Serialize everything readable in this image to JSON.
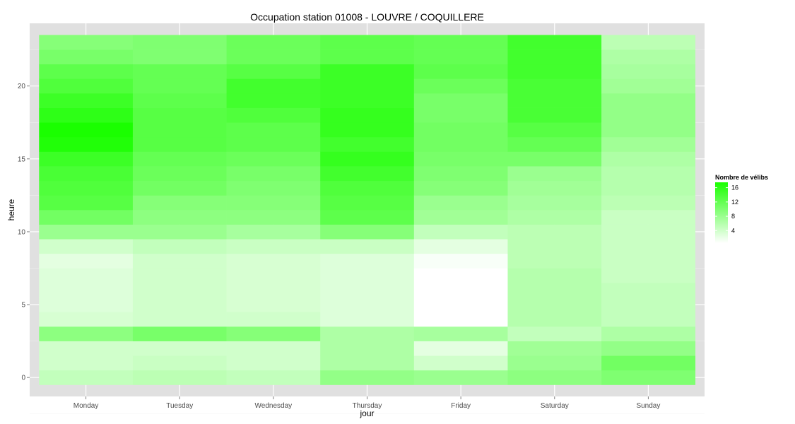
{
  "chart_data": {
    "type": "heatmap",
    "title": "Occupation station 01008 - LOUVRE / COQUILLERE",
    "xlabel": "jour",
    "ylabel": "heure",
    "x_categories": [
      "Monday",
      "Tuesday",
      "Wednesday",
      "Thursday",
      "Friday",
      "Saturday",
      "Sunday"
    ],
    "y_ticks": [
      0,
      5,
      10,
      15,
      20
    ],
    "y_tick_labels": [
      "0",
      "5",
      "10",
      "15",
      "20"
    ],
    "ylim": [
      -0.5,
      23.5
    ],
    "hours": [
      0,
      1,
      2,
      3,
      4,
      5,
      6,
      7,
      8,
      9,
      10,
      11,
      12,
      13,
      14,
      15,
      16,
      17,
      18,
      19,
      20,
      21,
      22,
      23
    ],
    "z": [
      [
        5.0,
        4.0,
        4.0,
        9.0,
        3.5,
        3.0,
        3.0,
        3.0,
        2.5,
        4.0,
        8.0,
        11.0,
        13.0,
        13.5,
        14.0,
        15.0,
        17.0,
        17.5,
        16.0,
        15.0,
        13.5,
        12.5,
        10.5,
        9.5
      ],
      [
        5.5,
        4.5,
        4.0,
        10.5,
        4.0,
        4.0,
        4.0,
        4.0,
        4.0,
        5.0,
        8.0,
        9.0,
        9.5,
        11.0,
        11.5,
        12.0,
        13.0,
        13.0,
        13.0,
        12.5,
        12.0,
        12.0,
        10.0,
        10.0
      ],
      [
        5.0,
        4.0,
        4.0,
        9.5,
        4.0,
        3.5,
        3.5,
        3.5,
        3.5,
        4.5,
        7.0,
        9.0,
        9.5,
        10.0,
        10.5,
        11.5,
        12.5,
        12.5,
        13.5,
        14.5,
        14.5,
        13.0,
        11.5,
        11.5
      ],
      [
        8.5,
        6.5,
        6.5,
        6.5,
        3.0,
        3.0,
        3.0,
        3.0,
        3.0,
        4.5,
        9.5,
        12.5,
        13.0,
        13.5,
        14.5,
        15.5,
        14.5,
        15.5,
        15.5,
        15.0,
        15.0,
        15.0,
        12.5,
        12.5
      ],
      [
        8.0,
        4.0,
        2.5,
        7.0,
        0.5,
        0.5,
        0.5,
        0.5,
        1.0,
        2.5,
        5.0,
        7.5,
        8.0,
        9.5,
        10.0,
        10.5,
        11.0,
        11.0,
        10.5,
        10.5,
        11.5,
        12.5,
        12.0,
        12.0
      ],
      [
        9.0,
        8.0,
        7.5,
        5.0,
        6.0,
        6.0,
        6.0,
        6.0,
        5.5,
        5.5,
        5.5,
        6.5,
        7.0,
        7.5,
        8.0,
        10.5,
        12.0,
        13.0,
        14.0,
        14.0,
        14.0,
        14.5,
        14.5,
        14.5
      ],
      [
        10.0,
        11.0,
        8.5,
        6.5,
        5.0,
        5.0,
        5.0,
        4.5,
        4.5,
        4.5,
        4.5,
        4.5,
        5.5,
        6.0,
        6.0,
        6.5,
        7.5,
        8.5,
        8.5,
        8.5,
        7.5,
        7.0,
        6.5,
        5.5
      ]
    ],
    "zlim": [
      0.5,
      17.5
    ],
    "grid": true,
    "legend": {
      "title": "Nombre de vélibs",
      "breaks": [
        4,
        8,
        12,
        16
      ],
      "labels": [
        "4",
        "8",
        "12",
        "16"
      ],
      "low_color": "#ffffff",
      "high_color": "#1aff00",
      "placement": "right"
    },
    "panel_color": "#e0e0e0",
    "grid_color": "#ffffff"
  }
}
